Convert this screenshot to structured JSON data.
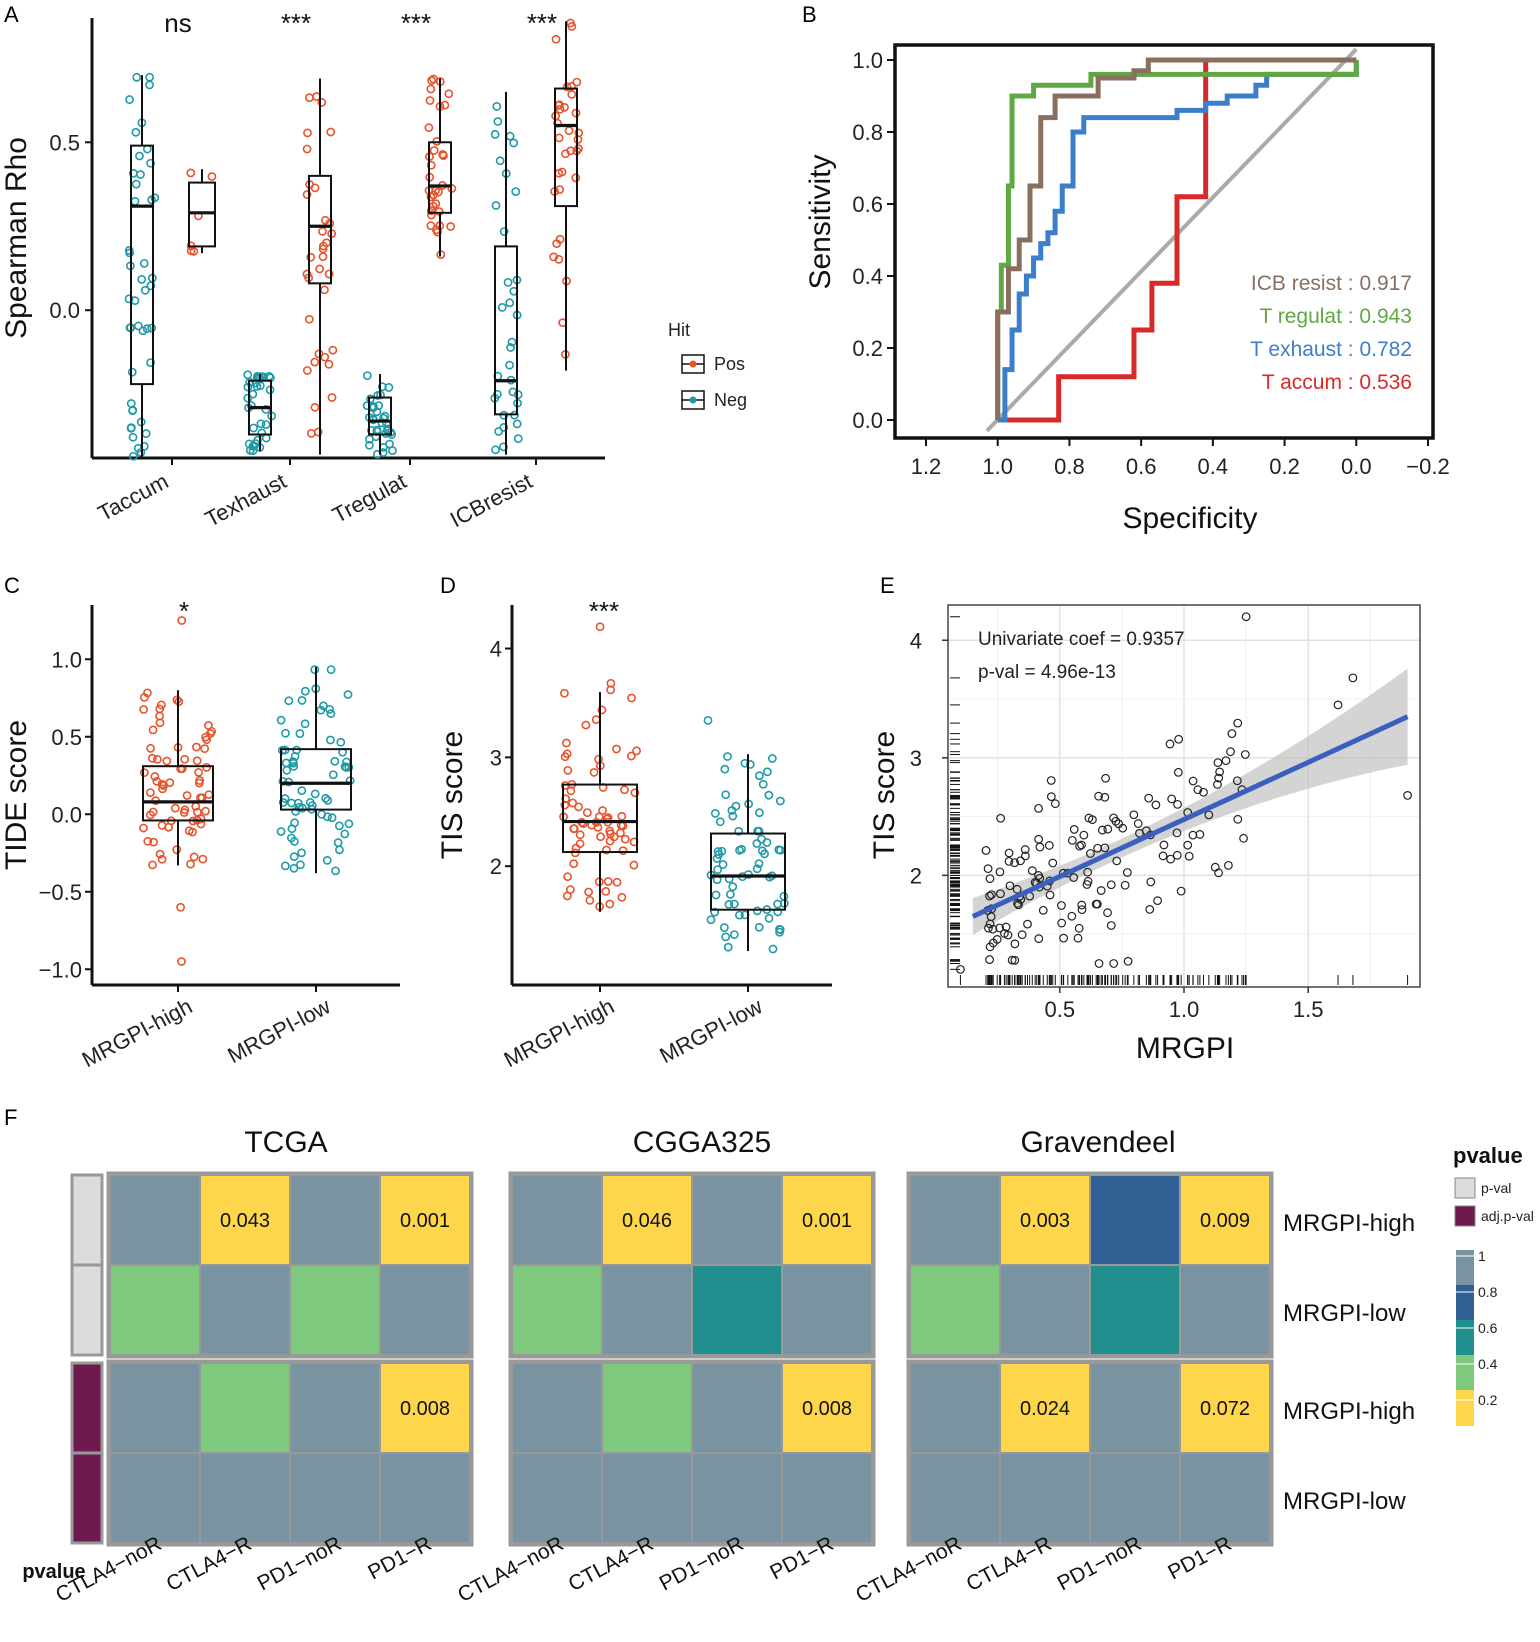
{
  "panel_letters": {
    "a": "A",
    "b": "B",
    "c": "C",
    "d": "D",
    "e": "E",
    "f": "F"
  },
  "chart_data": [
    {
      "panel": "A",
      "type": "box",
      "ylabel": "Spearman Rho",
      "ylim": [
        -0.44,
        0.87
      ],
      "yticks": [
        0.0,
        0.5
      ],
      "ytick_labels": [
        "0.0",
        "0.5"
      ],
      "categories": [
        "Taccum",
        "Texhaust",
        "Tregulat",
        "ICBresist"
      ],
      "significance": [
        "ns",
        "***",
        "***",
        "***"
      ],
      "legend": {
        "title": "Hit",
        "entries": [
          "Pos",
          "Neg"
        ],
        "colors": [
          "#e8532c",
          "#1f9aa6"
        ]
      },
      "boxes": [
        {
          "category": "Taccum",
          "group": "Neg",
          "q1": -0.22,
          "median": 0.31,
          "q3": 0.49,
          "lo": -0.44,
          "hi": 0.7
        },
        {
          "category": "Taccum",
          "group": "Pos",
          "q1": 0.19,
          "median": 0.29,
          "q3": 0.38,
          "lo": 0.17,
          "hi": 0.42
        },
        {
          "category": "Texhaust",
          "group": "Neg",
          "q1": -0.37,
          "median": -0.29,
          "q3": -0.21,
          "lo": -0.42,
          "hi": -0.19
        },
        {
          "category": "Texhaust",
          "group": "Pos",
          "q1": 0.08,
          "median": 0.25,
          "q3": 0.4,
          "lo": -0.43,
          "hi": 0.69
        },
        {
          "category": "Tregulat",
          "group": "Neg",
          "q1": -0.37,
          "median": -0.33,
          "q3": -0.26,
          "lo": -0.43,
          "hi": -0.19
        },
        {
          "category": "Tregulat",
          "group": "Pos",
          "q1": 0.29,
          "median": 0.37,
          "q3": 0.5,
          "lo": 0.16,
          "hi": 0.69
        },
        {
          "category": "ICBresist",
          "group": "Neg",
          "q1": -0.31,
          "median": -0.21,
          "q3": 0.19,
          "lo": -0.43,
          "hi": 0.65
        },
        {
          "category": "ICBresist",
          "group": "Pos",
          "q1": 0.31,
          "median": 0.55,
          "q3": 0.66,
          "lo": -0.18,
          "hi": 0.86
        }
      ]
    },
    {
      "panel": "B",
      "type": "line",
      "xlabel": "Specificity",
      "ylabel": "Sensitivity",
      "xlim": [
        1.2,
        -0.2
      ],
      "ylim": [
        0.0,
        1.0
      ],
      "xticks": [
        1.2,
        1.0,
        0.8,
        0.6,
        0.4,
        0.2,
        0.0,
        -0.2
      ],
      "xtick_labels": [
        "1.2",
        "1.0",
        "0.8",
        "0.6",
        "0.4",
        "0.2",
        "0.0",
        "−0.2"
      ],
      "yticks": [
        0.0,
        0.2,
        0.4,
        0.6,
        0.8,
        1.0
      ],
      "ytick_labels": [
        "0.0",
        "0.2",
        "0.4",
        "0.6",
        "0.8",
        "1.0"
      ],
      "series": [
        {
          "name": "ICB resist",
          "label": "ICB resist : 0.917",
          "auc": 0.917,
          "color": "#8b6f5e",
          "x": [
            1.0,
            1.0,
            0.97,
            0.97,
            0.94,
            0.94,
            0.91,
            0.91,
            0.88,
            0.88,
            0.84,
            0.84,
            0.72,
            0.72,
            0.62,
            0.62,
            0.58,
            0.58,
            0.4,
            0.4,
            0.0,
            0.0
          ],
          "y": [
            0.0,
            0.3,
            0.3,
            0.42,
            0.42,
            0.5,
            0.5,
            0.65,
            0.65,
            0.84,
            0.84,
            0.9,
            0.9,
            0.95,
            0.95,
            0.97,
            0.97,
            1.0,
            1.0,
            1.0,
            1.0,
            1.0
          ]
        },
        {
          "name": "T regulat",
          "label": "T regulat : 0.943",
          "auc": 0.943,
          "color": "#5fa843",
          "x": [
            1.0,
            1.0,
            0.99,
            0.99,
            0.97,
            0.97,
            0.96,
            0.96,
            0.9,
            0.9,
            0.74,
            0.74,
            0.4,
            0.4,
            0.0,
            0.0
          ],
          "y": [
            0.0,
            0.3,
            0.3,
            0.43,
            0.43,
            0.65,
            0.65,
            0.9,
            0.9,
            0.93,
            0.93,
            0.96,
            0.96,
            0.96,
            0.96,
            1.0
          ]
        },
        {
          "name": "T exhaust",
          "label": "T exhaust : 0.782",
          "auc": 0.782,
          "color": "#3d7ecb",
          "x": [
            1.0,
            0.98,
            0.98,
            0.96,
            0.96,
            0.94,
            0.94,
            0.92,
            0.92,
            0.9,
            0.9,
            0.88,
            0.88,
            0.86,
            0.86,
            0.84,
            0.84,
            0.82,
            0.82,
            0.79,
            0.79,
            0.76,
            0.76,
            0.5,
            0.5,
            0.42,
            0.42,
            0.36,
            0.36,
            0.28,
            0.28,
            0.25,
            0.25,
            0.0,
            0.0
          ],
          "y": [
            0.0,
            0.0,
            0.14,
            0.14,
            0.25,
            0.25,
            0.35,
            0.35,
            0.4,
            0.4,
            0.45,
            0.45,
            0.49,
            0.49,
            0.52,
            0.52,
            0.58,
            0.58,
            0.65,
            0.65,
            0.8,
            0.8,
            0.84,
            0.84,
            0.86,
            0.86,
            0.88,
            0.88,
            0.9,
            0.9,
            0.93,
            0.93,
            0.96,
            0.96,
            1.0
          ]
        },
        {
          "name": "T accum",
          "label": "T accum : 0.536",
          "auc": 0.536,
          "color": "#d82a2a",
          "x": [
            1.0,
            0.83,
            0.83,
            0.62,
            0.62,
            0.57,
            0.57,
            0.5,
            0.5,
            0.42,
            0.42,
            0.0
          ],
          "y": [
            0.0,
            0.0,
            0.12,
            0.12,
            0.25,
            0.25,
            0.38,
            0.38,
            0.62,
            0.62,
            1.0,
            1.0
          ]
        }
      ]
    },
    {
      "panel": "C",
      "type": "box",
      "ylabel": "TIDE score",
      "ylim": [
        -1.05,
        1.35
      ],
      "yticks": [
        -1.0,
        -0.5,
        0.0,
        0.5,
        1.0
      ],
      "ytick_labels": [
        "−1.0",
        "−0.5",
        "0.0",
        "0.5",
        "1.0"
      ],
      "categories": [
        "MRGPI-high",
        "MRGPI-low"
      ],
      "significance": "*",
      "boxes": [
        {
          "category": "MRGPI-high",
          "q1": -0.04,
          "median": 0.08,
          "q3": 0.31,
          "lo": -0.33,
          "hi": 0.8
        },
        {
          "category": "MRGPI-low",
          "q1": 0.03,
          "median": 0.2,
          "q3": 0.42,
          "lo": -0.38,
          "hi": 0.95
        }
      ],
      "outliers": {
        "MRGPI-high": [
          1.25,
          -0.6,
          -0.95
        ]
      }
    },
    {
      "panel": "D",
      "type": "box",
      "ylabel": "TIS score",
      "ylim": [
        1.0,
        4.4
      ],
      "yticks": [
        2,
        3,
        4
      ],
      "ytick_labels": [
        "2",
        "3",
        "4"
      ],
      "categories": [
        "MRGPI-high",
        "MRGPI-low"
      ],
      "significance": "***",
      "boxes": [
        {
          "category": "MRGPI-high",
          "q1": 2.13,
          "median": 2.41,
          "q3": 2.75,
          "lo": 1.58,
          "hi": 3.6
        },
        {
          "category": "MRGPI-low",
          "q1": 1.6,
          "median": 1.91,
          "q3": 2.3,
          "lo": 1.22,
          "hi": 3.03
        }
      ],
      "outliers": {
        "MRGPI-high": [
          4.2,
          3.68,
          3.62
        ],
        "MRGPI-low": [
          3.34
        ]
      }
    },
    {
      "panel": "E",
      "type": "scatter",
      "xlabel": "MRGPI",
      "ylabel": "TIS score",
      "xlim": [
        0.05,
        1.95
      ],
      "ylim": [
        1.05,
        4.3
      ],
      "xticks": [
        0.5,
        1.0,
        1.5
      ],
      "xtick_labels": [
        "0.5",
        "1.0",
        "1.5"
      ],
      "yticks": [
        2,
        3,
        4
      ],
      "ytick_labels": [
        "2",
        "3",
        "4"
      ],
      "annotations": [
        "Univariate coef = 0.9357",
        "p-val = 4.96e-13"
      ],
      "fit": {
        "x": [
          0.15,
          1.9
        ],
        "y": [
          1.65,
          3.35
        ],
        "color": "#3a5fbf"
      },
      "highlight_points": [
        [
          1.25,
          4.2
        ],
        [
          1.68,
          3.68
        ],
        [
          1.62,
          3.45
        ],
        [
          1.9,
          2.68
        ],
        [
          0.1,
          1.2
        ]
      ]
    },
    {
      "panel": "F",
      "type": "heatmap",
      "datasets": [
        "TCGA",
        "CGGA325",
        "Gravendeel"
      ],
      "columns": [
        "CTLA4−noR",
        "CTLA4−R",
        "PD1−noR",
        "PD1−R"
      ],
      "rows": [
        "MRGPI-high",
        "MRGPI-low",
        "MRGPI-high",
        "MRGPI-low"
      ],
      "row_annotation_title": "pvalue",
      "row_groups": [
        "p-val",
        "p-val",
        "adj.p-val",
        "adj.p-val"
      ],
      "legend": {
        "title": "pvalue",
        "categories": [
          "p-val",
          "adj.p-val"
        ],
        "category_colors": [
          "#dcdcdc",
          "#6e1a4f"
        ],
        "scale_labels": [
          "1",
          "0.8",
          "0.6",
          "0.4",
          "0.2"
        ]
      },
      "values": [
        [
          [
            1,
            0.043,
            1,
            0.001
          ],
          [
            0.4,
            1,
            0.4,
            1
          ],
          [
            1,
            0.4,
            1,
            0.008
          ],
          [
            1,
            1,
            1,
            1
          ]
        ],
        [
          [
            1,
            0.046,
            1,
            0.001
          ],
          [
            0.4,
            1,
            0.6,
            1
          ],
          [
            1,
            0.4,
            1,
            0.008
          ],
          [
            1,
            1,
            1,
            1
          ]
        ],
        [
          [
            1,
            0.003,
            0.8,
            0.009
          ],
          [
            0.4,
            1,
            0.6,
            1
          ],
          [
            1,
            0.024,
            1,
            0.072
          ],
          [
            1,
            1,
            1,
            1
          ]
        ]
      ],
      "cell_labels": [
        [
          [
            "",
            "0.043",
            "",
            "0.001"
          ],
          [
            "",
            "",
            "",
            ""
          ],
          [
            "",
            "",
            "",
            "0.008"
          ],
          [
            "",
            "",
            "",
            ""
          ]
        ],
        [
          [
            "",
            "0.046",
            "",
            "0.001"
          ],
          [
            "",
            "",
            "",
            ""
          ],
          [
            "",
            "",
            "",
            "0.008"
          ],
          [
            "",
            "",
            "",
            ""
          ]
        ],
        [
          [
            "",
            "0.003",
            "",
            "0.009"
          ],
          [
            "",
            "",
            "",
            ""
          ],
          [
            "",
            "0.024",
            "",
            "0.072"
          ],
          [
            "",
            "",
            "",
            ""
          ]
        ]
      ]
    }
  ]
}
